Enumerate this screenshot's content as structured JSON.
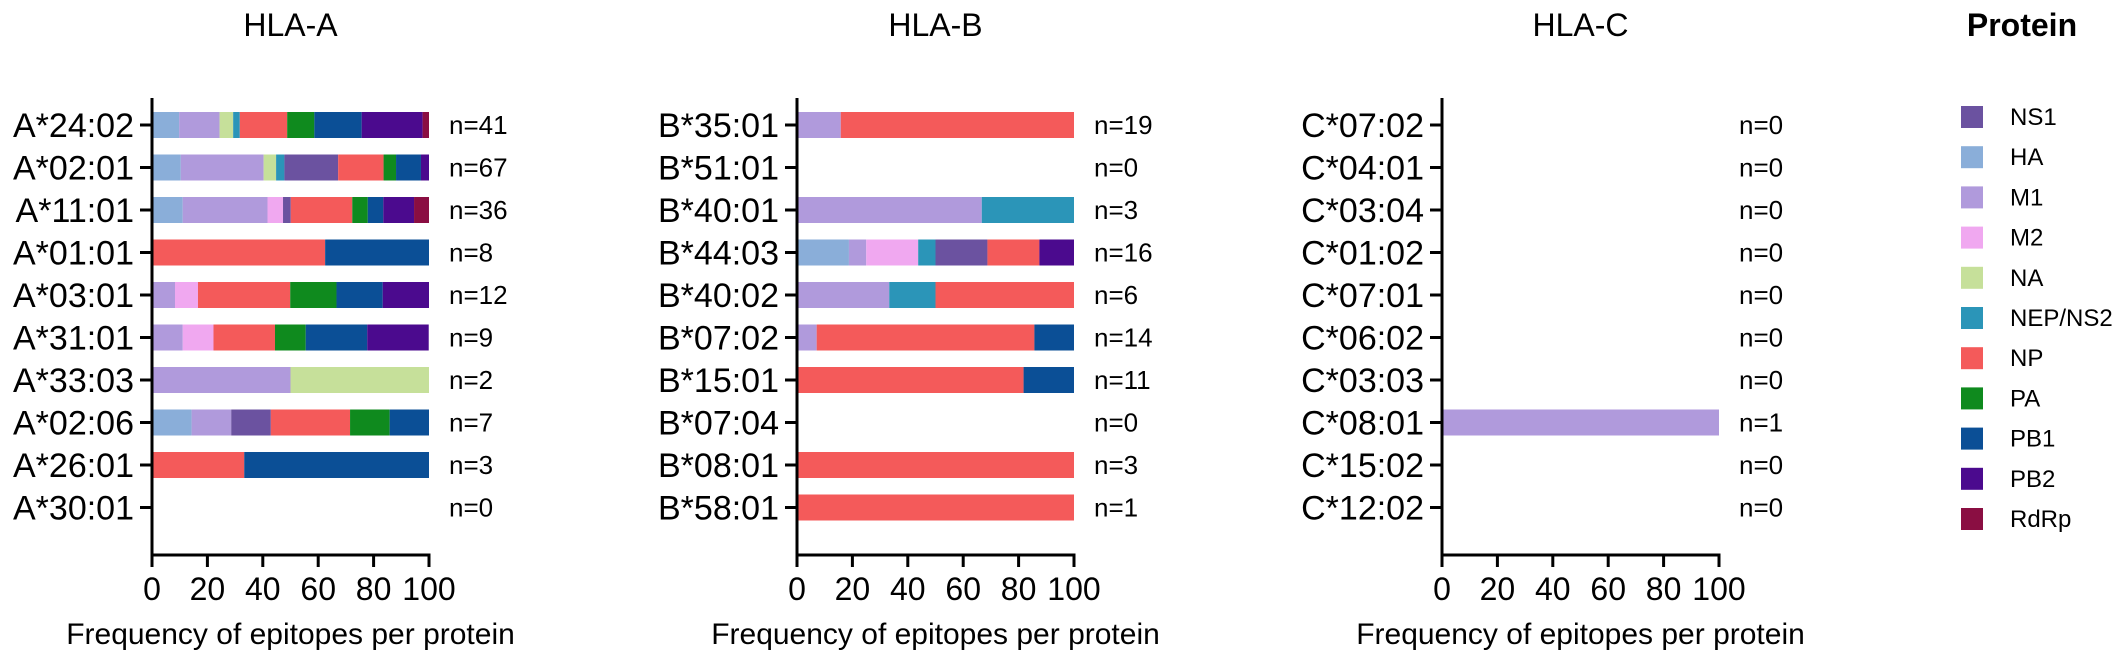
{
  "chart_data": {
    "type": "bar",
    "subtype": "stacked-horizontal-100",
    "legend": {
      "title": "Protein",
      "placement": "right",
      "entries": [
        {
          "name": "NS1",
          "color": "#6B52A0"
        },
        {
          "name": "HA",
          "color": "#8AAED9"
        },
        {
          "name": "M1",
          "color": "#B09ADC"
        },
        {
          "name": "M2",
          "color": "#F0A8F0"
        },
        {
          "name": "NA",
          "color": "#C6E09A"
        },
        {
          "name": "NEP/NS2",
          "color": "#2B95B8"
        },
        {
          "name": "NP",
          "color": "#F45A5A"
        },
        {
          "name": "PA",
          "color": "#0F8A1E"
        },
        {
          "name": "PB1",
          "color": "#0B4F96"
        },
        {
          "name": "PB2",
          "color": "#4B0A8E"
        },
        {
          "name": "RdRp",
          "color": "#8A0E42"
        }
      ]
    },
    "panels": [
      {
        "title": "HLA-A",
        "xlabel": "Frequency of epitopes per protein",
        "xlim": [
          0,
          100
        ],
        "xticks": [
          0,
          20,
          40,
          60,
          80,
          100
        ],
        "categories": [
          "A*24:02",
          "A*02:01",
          "A*11:01",
          "A*01:01",
          "A*03:01",
          "A*31:01",
          "A*33:03",
          "A*02:06",
          "A*26:01",
          "A*30:01"
        ],
        "n_labels": [
          "n=41",
          "n=67",
          "n=36",
          "n=8",
          "n=12",
          "n=9",
          "n=2",
          "n=7",
          "n=3",
          "n=0"
        ],
        "segments": [
          [
            [
              "HA",
              9.8
            ],
            [
              "M1",
              14.6
            ],
            [
              "NA",
              4.9
            ],
            [
              "NEP/NS2",
              2.4
            ],
            [
              "NP",
              17.1
            ],
            [
              "PA",
              9.8
            ],
            [
              "PB1",
              17.1
            ],
            [
              "PB2",
              22.0
            ],
            [
              "RdRp",
              2.4
            ]
          ],
          [
            [
              "HA",
              10.4
            ],
            [
              "M1",
              29.9
            ],
            [
              "NA",
              4.5
            ],
            [
              "NEP/NS2",
              3.0
            ],
            [
              "NS1",
              19.4
            ],
            [
              "NP",
              16.4
            ],
            [
              "PA",
              4.5
            ],
            [
              "PB1",
              9.0
            ],
            [
              "PB2",
              3.0
            ]
          ],
          [
            [
              "HA",
              11.1
            ],
            [
              "M1",
              30.6
            ],
            [
              "M2",
              5.6
            ],
            [
              "NS1",
              2.8
            ],
            [
              "NP",
              22.2
            ],
            [
              "PA",
              5.6
            ],
            [
              "PB1",
              5.6
            ],
            [
              "PB2",
              11.1
            ],
            [
              "RdRp",
              5.6
            ]
          ],
          [
            [
              "NP",
              62.5
            ],
            [
              "PB1",
              37.5
            ]
          ],
          [
            [
              "M1",
              8.3
            ],
            [
              "M2",
              8.3
            ],
            [
              "NP",
              33.3
            ],
            [
              "PA",
              16.7
            ],
            [
              "PB1",
              16.7
            ],
            [
              "PB2",
              16.7
            ]
          ],
          [
            [
              "M1",
              11.1
            ],
            [
              "M2",
              11.1
            ],
            [
              "NP",
              22.2
            ],
            [
              "PA",
              11.1
            ],
            [
              "PB1",
              22.2
            ],
            [
              "PB2",
              22.2
            ]
          ],
          [
            [
              "M1",
              50.0
            ],
            [
              "NA",
              50.0
            ]
          ],
          [
            [
              "HA",
              14.3
            ],
            [
              "M1",
              14.3
            ],
            [
              "NS1",
              14.3
            ],
            [
              "NP",
              28.6
            ],
            [
              "PA",
              14.3
            ],
            [
              "PB1",
              14.3
            ]
          ],
          [
            [
              "NP",
              33.3
            ],
            [
              "PB1",
              66.7
            ]
          ],
          []
        ]
      },
      {
        "title": "HLA-B",
        "xlabel": "Frequency of epitopes per protein",
        "xlim": [
          0,
          100
        ],
        "xticks": [
          0,
          20,
          40,
          60,
          80,
          100
        ],
        "categories": [
          "B*35:01",
          "B*51:01",
          "B*40:01",
          "B*44:03",
          "B*40:02",
          "B*07:02",
          "B*15:01",
          "B*07:04",
          "B*08:01",
          "B*58:01"
        ],
        "n_labels": [
          "n=19",
          "n=0",
          "n=3",
          "n=16",
          "n=6",
          "n=14",
          "n=11",
          "n=0",
          "n=3",
          "n=1"
        ],
        "segments": [
          [
            [
              "M1",
              15.8
            ],
            [
              "NP",
              84.2
            ]
          ],
          [],
          [
            [
              "M1",
              66.7
            ],
            [
              "NEP/NS2",
              33.3
            ]
          ],
          [
            [
              "HA",
              18.75
            ],
            [
              "M1",
              6.25
            ],
            [
              "M2",
              18.75
            ],
            [
              "NEP/NS2",
              6.25
            ],
            [
              "NS1",
              18.75
            ],
            [
              "NP",
              18.75
            ],
            [
              "PB2",
              12.5
            ]
          ],
          [
            [
              "M1",
              33.3
            ],
            [
              "NEP/NS2",
              16.7
            ],
            [
              "NP",
              50.0
            ]
          ],
          [
            [
              "M1",
              7.1
            ],
            [
              "NP",
              78.6
            ],
            [
              "PB1",
              14.3
            ]
          ],
          [
            [
              "NP",
              81.8
            ],
            [
              "PB1",
              18.2
            ]
          ],
          [],
          [
            [
              "NP",
              100
            ]
          ],
          [
            [
              "NP",
              100
            ]
          ]
        ]
      },
      {
        "title": "HLA-C",
        "xlabel": "Frequency of epitopes per protein",
        "xlim": [
          0,
          100
        ],
        "xticks": [
          0,
          20,
          40,
          60,
          80,
          100
        ],
        "categories": [
          "C*07:02",
          "C*04:01",
          "C*03:04",
          "C*01:02",
          "C*07:01",
          "C*06:02",
          "C*03:03",
          "C*08:01",
          "C*15:02",
          "C*12:02"
        ],
        "n_labels": [
          "n=0",
          "n=0",
          "n=0",
          "n=0",
          "n=0",
          "n=0",
          "n=0",
          "n=1",
          "n=0",
          "n=0"
        ],
        "segments": [
          [],
          [],
          [],
          [],
          [],
          [],
          [],
          [
            [
              "M1",
              100
            ]
          ],
          [],
          []
        ]
      }
    ]
  }
}
